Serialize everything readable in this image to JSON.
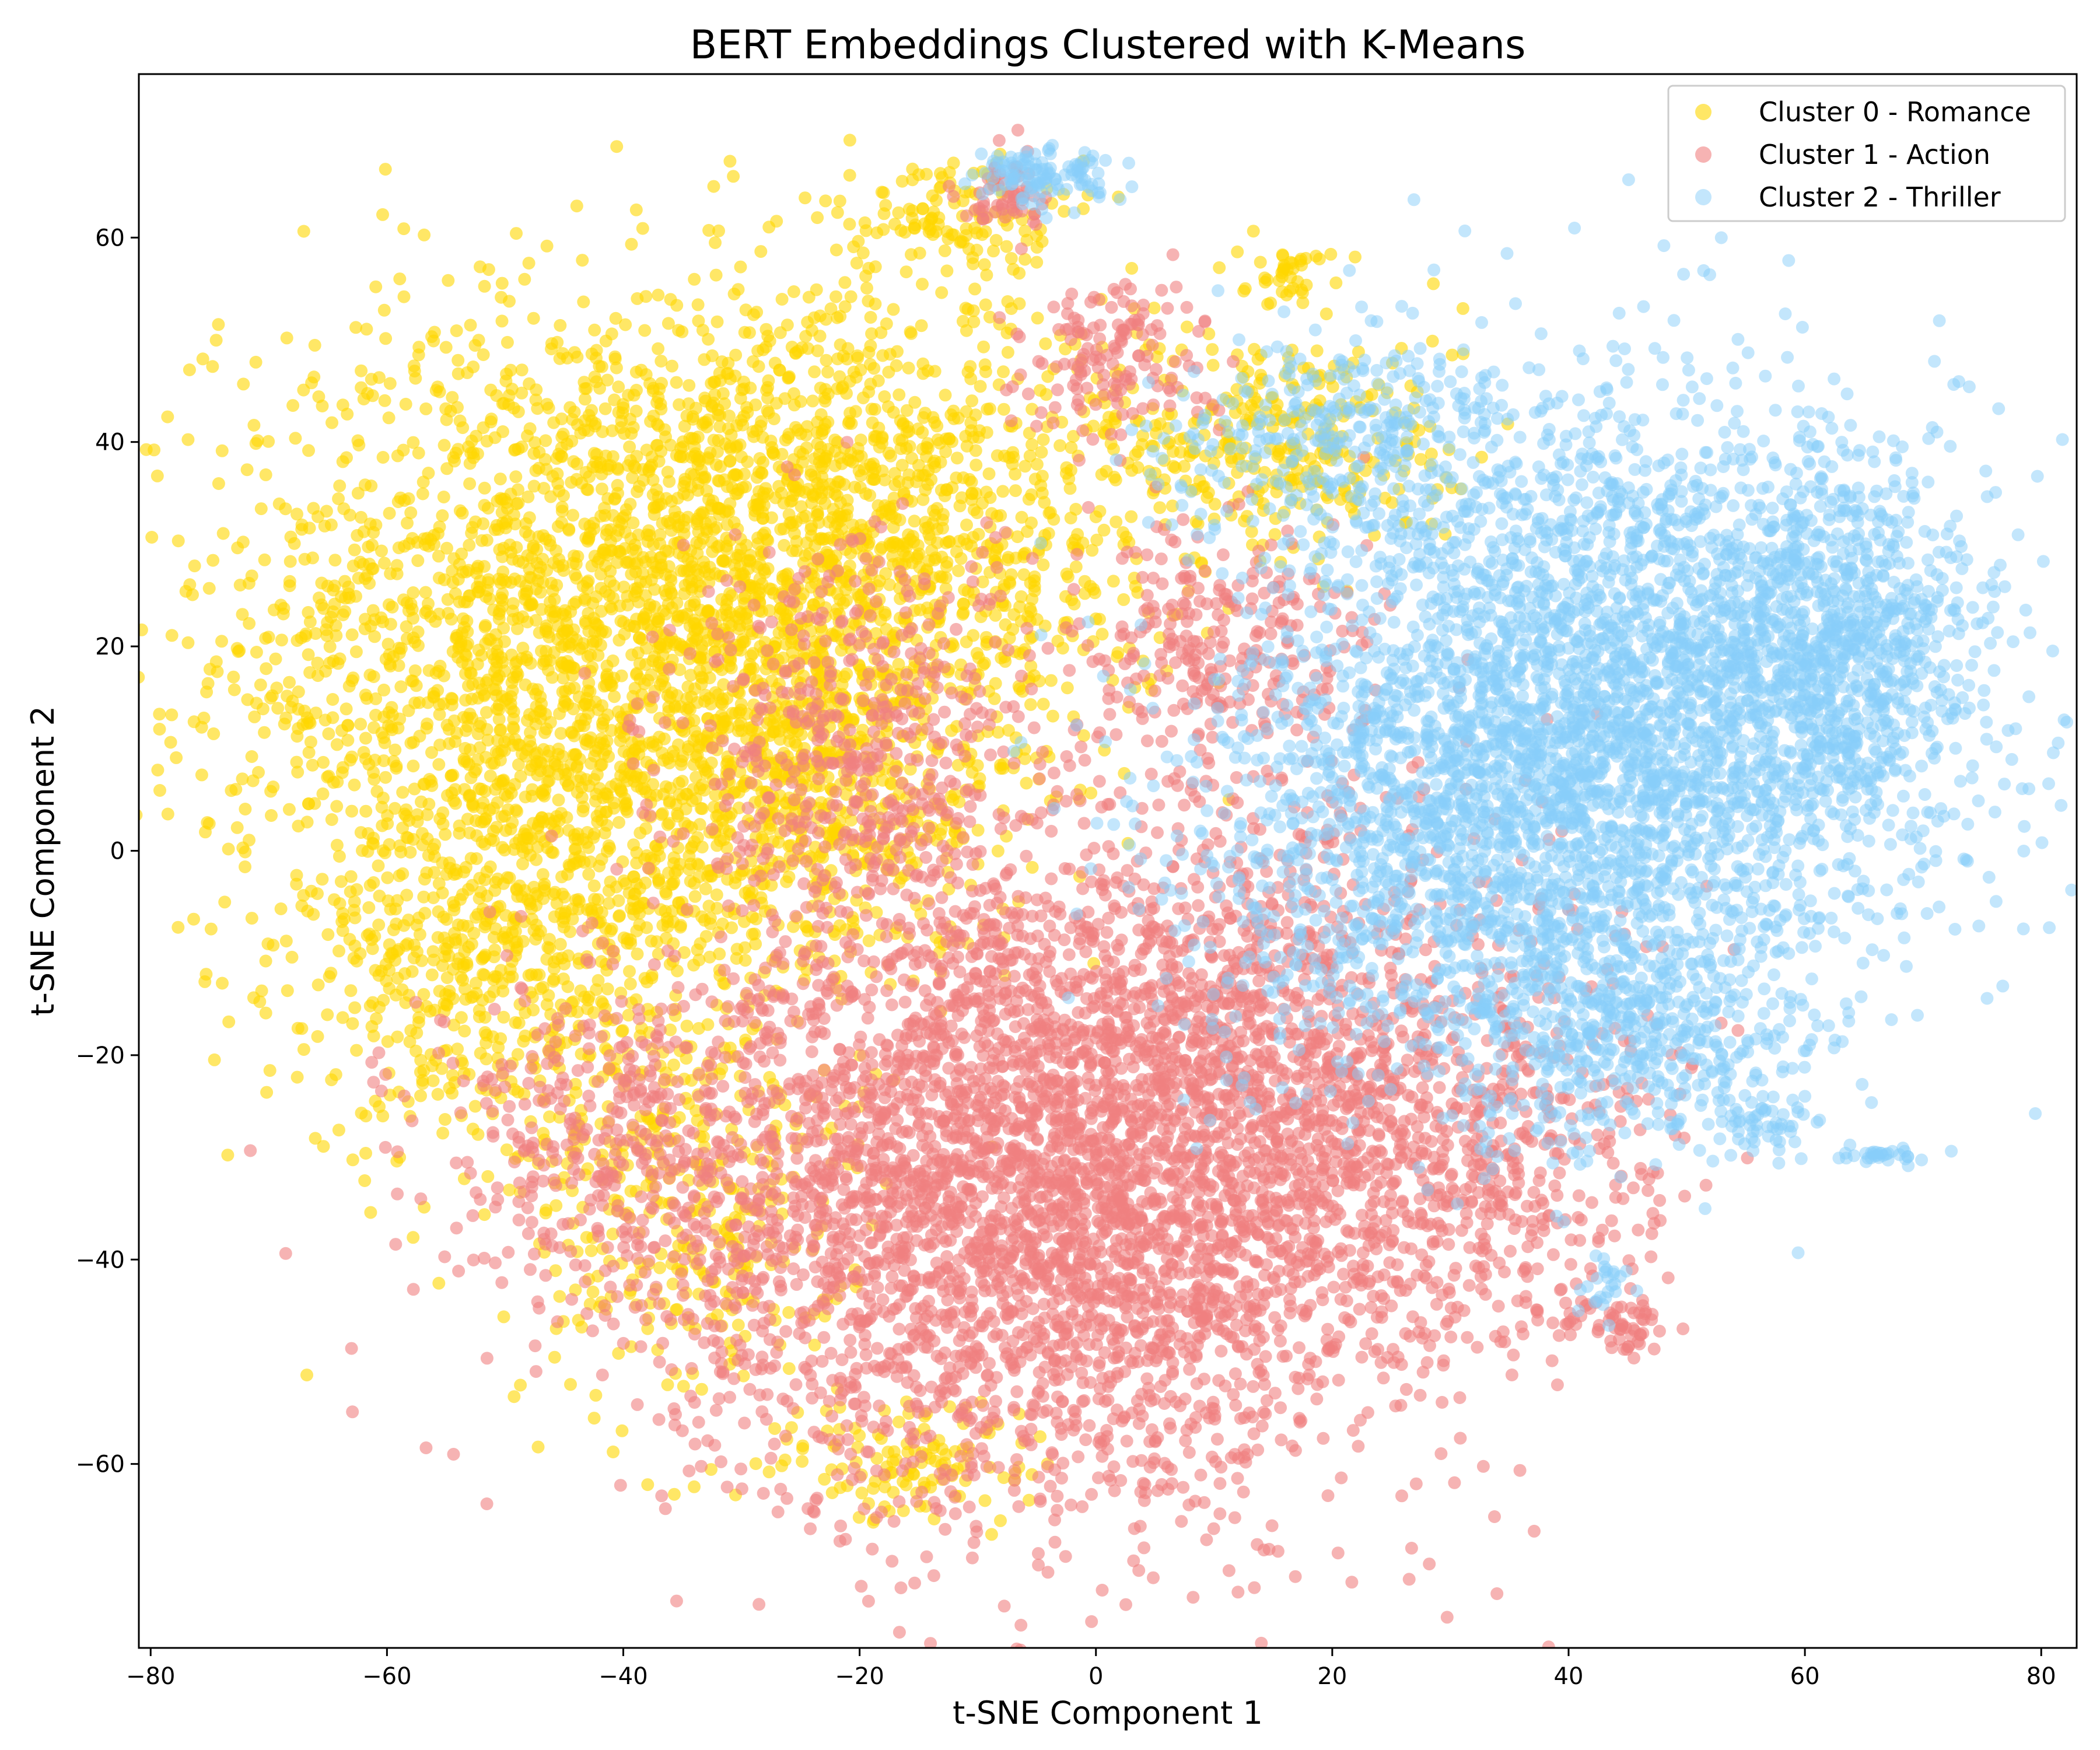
{
  "chart_data": {
    "type": "scatter",
    "title": "BERT Embeddings Clustered with K-Means",
    "xlabel": "t-SNE Component 1",
    "ylabel": "t-SNE Component 2",
    "xlim": [
      -81,
      83
    ],
    "ylim": [
      -78,
      76
    ],
    "xticks": [
      -80,
      -60,
      -40,
      -20,
      0,
      20,
      40,
      60,
      80
    ],
    "yticks": [
      -60,
      -40,
      -20,
      0,
      20,
      40,
      60
    ],
    "grid": false,
    "legend_position": "top-right",
    "series": [
      {
        "name": "Cluster 0 - Romance",
        "color": "#FFD700",
        "opacity": 0.6,
        "blobs": [
          {
            "cx": -42,
            "cy": 20,
            "sx": 16,
            "sy": 17,
            "n": 2600
          },
          {
            "cx": -20,
            "cy": 30,
            "sx": 12,
            "sy": 12,
            "n": 1200
          },
          {
            "cx": -50,
            "cy": -10,
            "sx": 9,
            "sy": 10,
            "n": 600
          },
          {
            "cx": -35,
            "cy": -35,
            "sx": 7,
            "sy": 10,
            "n": 350
          },
          {
            "cx": 15,
            "cy": 40,
            "sx": 8,
            "sy": 6,
            "n": 350
          },
          {
            "cx": -12,
            "cy": 62,
            "sx": 4,
            "sy": 3,
            "n": 120
          },
          {
            "cx": 16,
            "cy": 57,
            "sx": 2,
            "sy": 1.5,
            "n": 40
          },
          {
            "cx": -25,
            "cy": 5,
            "sx": 8,
            "sy": 8,
            "n": 400
          },
          {
            "cx": -15,
            "cy": -60,
            "sx": 6,
            "sy": 3,
            "n": 120
          }
        ]
      },
      {
        "name": "Cluster 1 - Action",
        "color": "#F08080",
        "opacity": 0.6,
        "blobs": [
          {
            "cx": -5,
            "cy": -35,
            "sx": 16,
            "sy": 15,
            "n": 3200
          },
          {
            "cx": 10,
            "cy": -20,
            "sx": 15,
            "sy": 15,
            "n": 1400
          },
          {
            "cx": -20,
            "cy": 10,
            "sx": 8,
            "sy": 10,
            "n": 500
          },
          {
            "cx": -40,
            "cy": -30,
            "sx": 9,
            "sy": 9,
            "n": 400
          },
          {
            "cx": 30,
            "cy": -30,
            "sx": 9,
            "sy": 9,
            "n": 500
          },
          {
            "cx": 2,
            "cy": 48,
            "sx": 4,
            "sy": 4,
            "n": 150
          },
          {
            "cx": -8,
            "cy": 64,
            "sx": 2,
            "sy": 2,
            "n": 60
          },
          {
            "cx": 43,
            "cy": -46,
            "sx": 3,
            "sy": 1.5,
            "n": 60
          },
          {
            "cx": 10,
            "cy": 20,
            "sx": 6,
            "sy": 6,
            "n": 250
          }
        ]
      },
      {
        "name": "Cluster 2 - Thriller",
        "color": "#87CEFA",
        "opacity": 0.5,
        "blobs": [
          {
            "cx": 45,
            "cy": 15,
            "sx": 14,
            "sy": 15,
            "n": 3000
          },
          {
            "cx": 30,
            "cy": 0,
            "sx": 12,
            "sy": 12,
            "n": 1200
          },
          {
            "cx": 62,
            "cy": 20,
            "sx": 6,
            "sy": 9,
            "n": 700
          },
          {
            "cx": 45,
            "cy": -18,
            "sx": 8,
            "sy": 6,
            "n": 450
          },
          {
            "cx": -4,
            "cy": 66,
            "sx": 3,
            "sy": 1.5,
            "n": 120
          },
          {
            "cx": 57,
            "cy": -27,
            "sx": 2,
            "sy": 1.5,
            "n": 40
          },
          {
            "cx": 67,
            "cy": -30,
            "sx": 2,
            "sy": 0.5,
            "n": 30
          },
          {
            "cx": 43,
            "cy": -43,
            "sx": 1.5,
            "sy": 1.5,
            "n": 25
          },
          {
            "cx": 20,
            "cy": 40,
            "sx": 7,
            "sy": 5,
            "n": 300
          }
        ]
      }
    ]
  }
}
